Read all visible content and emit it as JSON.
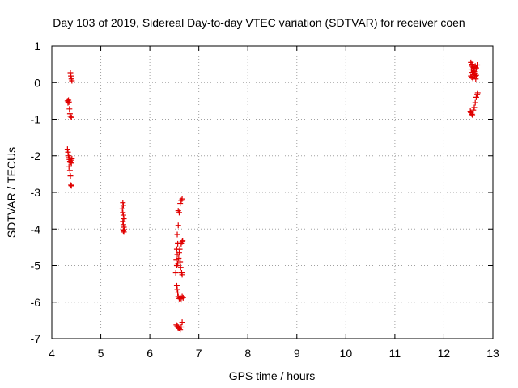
{
  "chart_data": {
    "type": "scatter",
    "title": "Day 103 of 2019, Sidereal Day-to-day VTEC variation (SDTVAR) for receiver coen",
    "xlabel": "GPS time / hours",
    "ylabel": "SDTVAR / TECUs",
    "xlim": [
      4,
      13
    ],
    "ylim": [
      -7,
      1
    ],
    "xticks": [
      "4",
      "5",
      "6",
      "7",
      "8",
      "9",
      "10",
      "11",
      "12",
      "13"
    ],
    "yticks": [
      "1",
      "0",
      "-1",
      "-2",
      "-3",
      "-4",
      "-5",
      "-6",
      "-7"
    ],
    "grid": true,
    "series": [
      {
        "name": "SDTVAR",
        "color": "#e00000",
        "marker": "plus",
        "points": [
          [
            4.38,
            0.27
          ],
          [
            4.39,
            0.18
          ],
          [
            4.4,
            0.1
          ],
          [
            4.41,
            0.05
          ],
          [
            4.32,
            -0.5
          ],
          [
            4.33,
            -0.55
          ],
          [
            4.34,
            -0.48
          ],
          [
            4.35,
            -0.53
          ],
          [
            4.36,
            -0.72
          ],
          [
            4.37,
            -0.85
          ],
          [
            4.38,
            -0.92
          ],
          [
            4.4,
            -0.95
          ],
          [
            4.32,
            -1.82
          ],
          [
            4.33,
            -1.9
          ],
          [
            4.34,
            -2.0
          ],
          [
            4.35,
            -2.05
          ],
          [
            4.36,
            -2.1
          ],
          [
            4.37,
            -2.15
          ],
          [
            4.38,
            -2.18
          ],
          [
            4.39,
            -2.12
          ],
          [
            4.4,
            -2.2
          ],
          [
            4.41,
            -2.08
          ],
          [
            4.35,
            -2.3
          ],
          [
            4.37,
            -2.4
          ],
          [
            4.38,
            -2.55
          ],
          [
            4.39,
            -2.8
          ],
          [
            4.4,
            -2.82
          ],
          [
            5.45,
            -3.28
          ],
          [
            5.46,
            -3.35
          ],
          [
            5.44,
            -3.45
          ],
          [
            5.45,
            -3.55
          ],
          [
            5.46,
            -3.62
          ],
          [
            5.47,
            -3.72
          ],
          [
            5.45,
            -3.8
          ],
          [
            5.46,
            -3.88
          ],
          [
            5.47,
            -3.95
          ],
          [
            5.48,
            -4.02
          ],
          [
            5.46,
            -4.05
          ],
          [
            5.47,
            -4.08
          ],
          [
            6.58,
            -3.5
          ],
          [
            6.6,
            -3.55
          ],
          [
            6.62,
            -3.3
          ],
          [
            6.64,
            -3.22
          ],
          [
            6.66,
            -3.18
          ],
          [
            6.58,
            -3.9
          ],
          [
            6.56,
            -4.15
          ],
          [
            6.57,
            -4.4
          ],
          [
            6.55,
            -4.55
          ],
          [
            6.56,
            -4.7
          ],
          [
            6.54,
            -4.85
          ],
          [
            6.55,
            -5.0
          ],
          [
            6.53,
            -5.2
          ],
          [
            6.57,
            -4.95
          ],
          [
            6.59,
            -4.8
          ],
          [
            6.6,
            -4.65
          ],
          [
            6.61,
            -4.55
          ],
          [
            6.62,
            -4.9
          ],
          [
            6.63,
            -5.05
          ],
          [
            6.64,
            -4.4
          ],
          [
            6.66,
            -4.35
          ],
          [
            6.67,
            -4.32
          ],
          [
            6.65,
            -5.2
          ],
          [
            6.66,
            -5.25
          ],
          [
            6.55,
            -5.55
          ],
          [
            6.56,
            -5.65
          ],
          [
            6.57,
            -5.75
          ],
          [
            6.58,
            -5.85
          ],
          [
            6.6,
            -5.9
          ],
          [
            6.62,
            -5.88
          ],
          [
            6.64,
            -5.9
          ],
          [
            6.66,
            -5.85
          ],
          [
            6.68,
            -5.88
          ],
          [
            6.54,
            -6.62
          ],
          [
            6.56,
            -6.65
          ],
          [
            6.58,
            -6.7
          ],
          [
            6.6,
            -6.72
          ],
          [
            6.62,
            -6.75
          ],
          [
            6.64,
            -6.68
          ],
          [
            6.66,
            -6.55
          ],
          [
            12.55,
            0.55
          ],
          [
            12.57,
            0.5
          ],
          [
            12.58,
            0.45
          ],
          [
            12.6,
            0.42
          ],
          [
            12.62,
            0.38
          ],
          [
            12.64,
            0.45
          ],
          [
            12.66,
            0.4
          ],
          [
            12.68,
            0.48
          ],
          [
            12.56,
            0.35
          ],
          [
            12.58,
            0.28
          ],
          [
            12.6,
            0.22
          ],
          [
            12.62,
            0.3
          ],
          [
            12.64,
            0.25
          ],
          [
            12.66,
            0.2
          ],
          [
            12.55,
            0.18
          ],
          [
            12.57,
            0.15
          ],
          [
            12.59,
            0.12
          ],
          [
            12.61,
            0.32
          ],
          [
            12.63,
            0.18
          ],
          [
            12.65,
            0.1
          ],
          [
            12.54,
            -0.78
          ],
          [
            12.55,
            -0.82
          ],
          [
            12.57,
            -0.86
          ],
          [
            12.58,
            -0.88
          ],
          [
            12.6,
            -0.75
          ],
          [
            12.62,
            -0.68
          ],
          [
            12.64,
            -0.55
          ],
          [
            12.66,
            -0.4
          ],
          [
            12.68,
            -0.32
          ],
          [
            12.69,
            -0.28
          ]
        ]
      }
    ]
  }
}
